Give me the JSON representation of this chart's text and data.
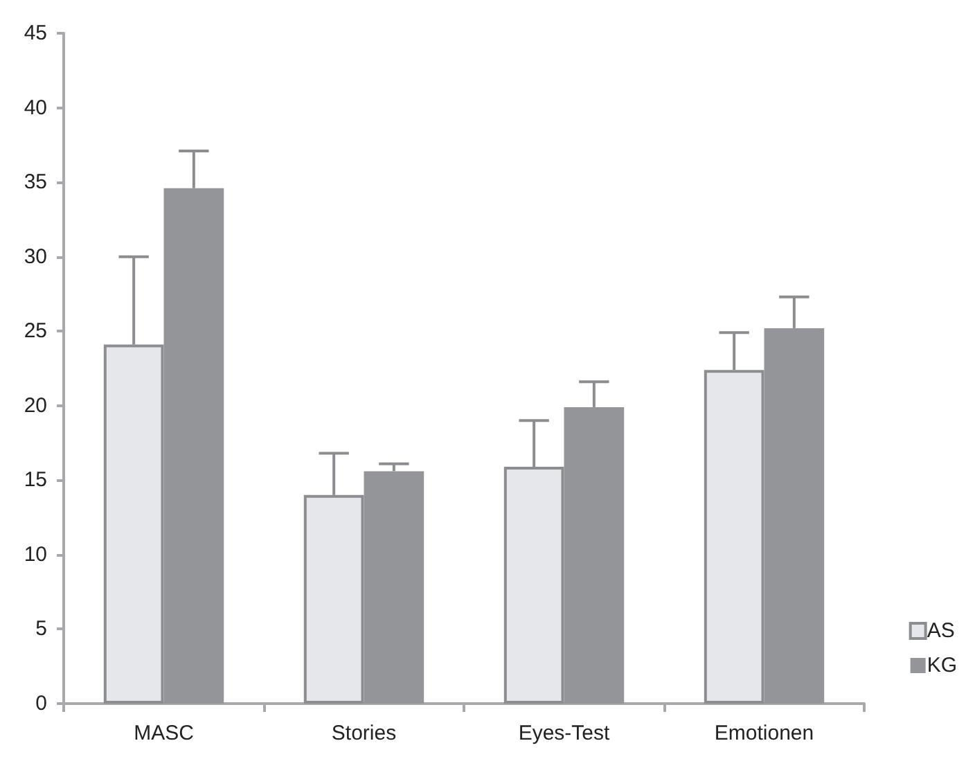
{
  "chart_data": {
    "type": "bar",
    "categories": [
      "MASC",
      "Stories",
      "Eyes-Test",
      "Emotionen"
    ],
    "series": [
      {
        "name": "AS",
        "color": "#e6e7eb",
        "values": [
          24.1,
          14.0,
          15.9,
          22.4
        ],
        "errors": [
          [
            24.1,
            30.0
          ],
          [
            14.0,
            16.8
          ],
          [
            15.9,
            19.0
          ],
          [
            22.4,
            24.9
          ]
        ]
      },
      {
        "name": "KG",
        "color": "#939598",
        "values": [
          34.6,
          15.6,
          19.9,
          25.2
        ],
        "errors": [
          [
            34.6,
            37.1
          ],
          [
            15.6,
            16.1
          ],
          [
            19.9,
            21.6
          ],
          [
            25.2,
            27.3
          ]
        ]
      }
    ],
    "ylim": [
      0,
      45
    ],
    "yticks": [
      0,
      5,
      10,
      15,
      20,
      25,
      30,
      35,
      40,
      45
    ],
    "grid": false,
    "legend": "bottom right"
  }
}
